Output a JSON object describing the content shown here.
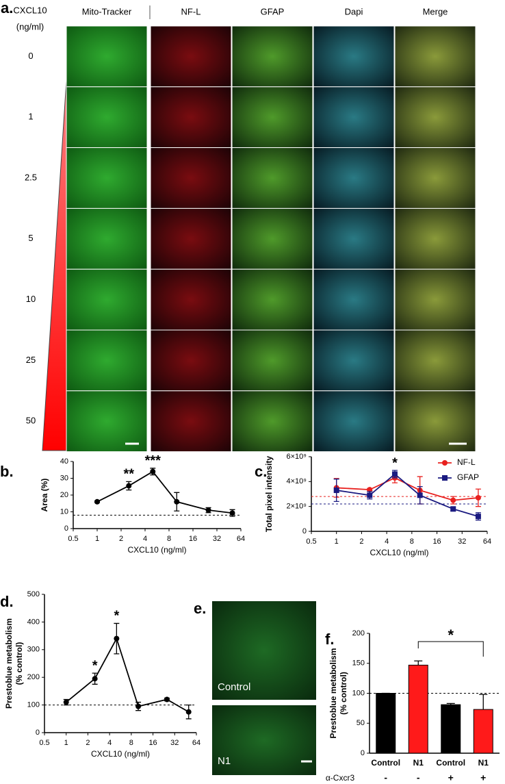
{
  "panel_a": {
    "panel": "a.",
    "row_header": [
      "CXCL10",
      "(ng/ml)"
    ],
    "columns": [
      "Mito-Tracker",
      "NF-L",
      "GFAP",
      "Dapi",
      "Merge"
    ],
    "rows": [
      "0",
      "1",
      "2.5",
      "5",
      "10",
      "25",
      "50"
    ]
  },
  "panel_e": {
    "panel": "e.",
    "labels": [
      "Control",
      "N1"
    ]
  },
  "chart_data": [
    {
      "type": "line",
      "panel": "b.",
      "xlabel": "CXCL10 (ng/ml)",
      "ylabel": [
        "Area (%)"
      ],
      "xscale": "log",
      "x": [
        1,
        2.5,
        5,
        10,
        25,
        50
      ],
      "xlim": [
        0.5,
        64
      ],
      "xticks": [
        0.5,
        1,
        2,
        4,
        8,
        16,
        32,
        64
      ],
      "ylim": [
        0,
        40
      ],
      "yticks": [
        0,
        10,
        20,
        30,
        40
      ],
      "series": [
        {
          "color": "#000000",
          "marker": "circle",
          "values": [
            16,
            25.5,
            34,
            16,
            11,
            9.3
          ],
          "errors": [
            0.5,
            2.5,
            2,
            5.5,
            1.5,
            2
          ]
        }
      ],
      "reference_lines": [
        {
          "value": 8,
          "color": "#000000"
        }
      ],
      "annotations": [
        {
          "text": "**",
          "x": 2.5
        },
        {
          "text": "***",
          "x": 5
        }
      ]
    },
    {
      "type": "line",
      "panel": "c.",
      "xlabel": "CXCL10 (ng/ml)",
      "ylabel": [
        "Total pixel intensity"
      ],
      "xscale": "log",
      "x": [
        1,
        2.5,
        5,
        10,
        25,
        50
      ],
      "xlim": [
        0.5,
        64
      ],
      "xticks": [
        0.5,
        1,
        2,
        4,
        8,
        16,
        32,
        64
      ],
      "ylim": [
        0,
        6000000000
      ],
      "yticks": [
        0,
        {
          "value": 2000000000,
          "label": "2×10⁹"
        },
        {
          "value": 4000000000,
          "label": "4×10⁹"
        },
        {
          "value": 6000000000,
          "label": "6×10⁹"
        }
      ],
      "series": [
        {
          "name": "NF-L",
          "color": "#e8201e",
          "marker": "circle",
          "values": [
            3500000000,
            3350000000,
            4300000000,
            3300000000,
            2500000000,
            2700000000
          ],
          "errors": [
            750000000,
            100000000,
            400000000,
            1100000000,
            300000000,
            700000000
          ]
        },
        {
          "name": "GFAP",
          "color": "#1a1a80",
          "marker": "square",
          "values": [
            3300000000,
            2900000000,
            4600000000,
            2900000000,
            1800000000,
            1200000000
          ],
          "errors": [
            900000000,
            300000000,
            300000000,
            700000000,
            150000000,
            300000000
          ]
        }
      ],
      "reference_lines": [
        {
          "value": 2800000000,
          "color": "#e8201e"
        },
        {
          "value": 2200000000,
          "color": "#1a1a80"
        }
      ],
      "legend": "top-right",
      "annotations": [
        {
          "text": "*",
          "x": 5
        }
      ]
    },
    {
      "type": "line",
      "panel": "d.",
      "xlabel": "CXCL10 (ng/ml)",
      "ylabel": [
        "Prestoblue metabolism",
        "(% control)"
      ],
      "xscale": "log",
      "x": [
        1,
        2.5,
        5,
        10,
        25,
        50
      ],
      "xlim": [
        0.5,
        64
      ],
      "xticks": [
        0.5,
        1,
        2,
        4,
        8,
        16,
        32,
        64
      ],
      "ylim": [
        0,
        500
      ],
      "yticks": [
        0,
        100,
        200,
        300,
        400,
        500
      ],
      "series": [
        {
          "color": "#000000",
          "marker": "circle",
          "values": [
            110,
            195,
            340,
            95,
            120,
            75
          ],
          "errors": [
            10,
            20,
            55,
            15,
            5,
            25
          ]
        }
      ],
      "reference_lines": [
        {
          "value": 100,
          "color": "#000000"
        }
      ],
      "annotations": [
        {
          "text": "*",
          "x": 2.5
        },
        {
          "text": "*",
          "x": 5
        }
      ]
    },
    {
      "type": "bar",
      "panel": "f.",
      "ylabel": [
        "Prestoblue metabolism",
        "(% control)"
      ],
      "categories": [
        "Control",
        "N1",
        "Control",
        "N1"
      ],
      "values": [
        100,
        147,
        81,
        73
      ],
      "errors": [
        0,
        7,
        2,
        25
      ],
      "colors": [
        "#000000",
        "#ff1a1a",
        "#000000",
        "#ff1a1a"
      ],
      "ylim": [
        0,
        200
      ],
      "yticks": [
        0,
        50,
        100,
        150,
        200
      ],
      "reference_lines": [
        {
          "value": 100,
          "color": "#000000"
        }
      ],
      "annotations": [
        {
          "text": "*"
        }
      ],
      "treatment": {
        "label": "α-Cxcr3",
        "values": [
          "-",
          "-",
          "+",
          "+"
        ]
      }
    }
  ]
}
